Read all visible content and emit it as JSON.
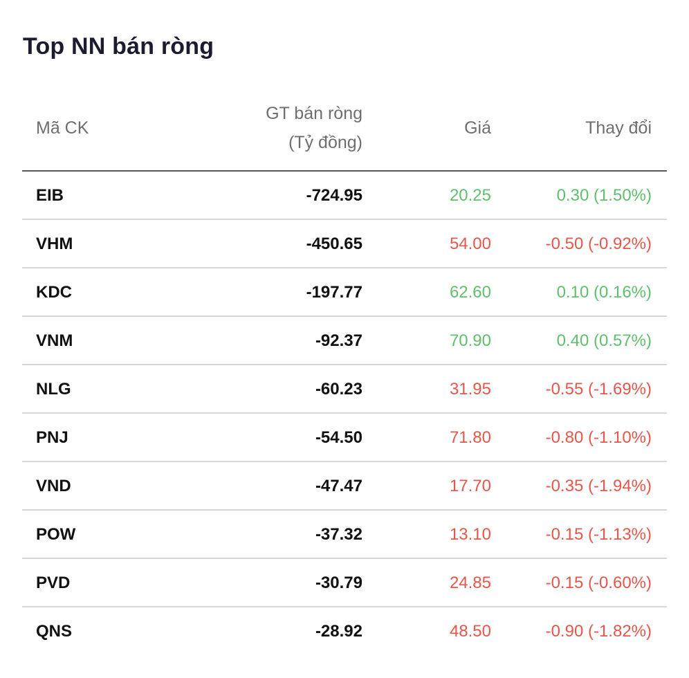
{
  "title": "Top NN bán ròng",
  "colors": {
    "up": "#5fbf6c",
    "down": "#e4574a",
    "title": "#1c1c30",
    "header": "#6e6e6e"
  },
  "headers": {
    "code": "Mã CK",
    "value_line1": "GT bán ròng",
    "value_line2": "(Tỷ đồng)",
    "price": "Giá",
    "change": "Thay đổi"
  },
  "rows": [
    {
      "code": "EIB",
      "value": "-724.95",
      "price": "20.25",
      "change": "0.30 (1.50%)",
      "trend": "up"
    },
    {
      "code": "VHM",
      "value": "-450.65",
      "price": "54.00",
      "change": "-0.50 (-0.92%)",
      "trend": "down"
    },
    {
      "code": "KDC",
      "value": "-197.77",
      "price": "62.60",
      "change": "0.10 (0.16%)",
      "trend": "up"
    },
    {
      "code": "VNM",
      "value": "-92.37",
      "price": "70.90",
      "change": "0.40 (0.57%)",
      "trend": "up"
    },
    {
      "code": "NLG",
      "value": "-60.23",
      "price": "31.95",
      "change": "-0.55 (-1.69%)",
      "trend": "down"
    },
    {
      "code": "PNJ",
      "value": "-54.50",
      "price": "71.80",
      "change": "-0.80 (-1.10%)",
      "trend": "down"
    },
    {
      "code": "VND",
      "value": "-47.47",
      "price": "17.70",
      "change": "-0.35 (-1.94%)",
      "trend": "down"
    },
    {
      "code": "POW",
      "value": "-37.32",
      "price": "13.10",
      "change": "-0.15 (-1.13%)",
      "trend": "down"
    },
    {
      "code": "PVD",
      "value": "-30.79",
      "price": "24.85",
      "change": "-0.15 (-0.60%)",
      "trend": "down"
    },
    {
      "code": "QNS",
      "value": "-28.92",
      "price": "48.50",
      "change": "-0.90 (-1.82%)",
      "trend": "down"
    }
  ]
}
